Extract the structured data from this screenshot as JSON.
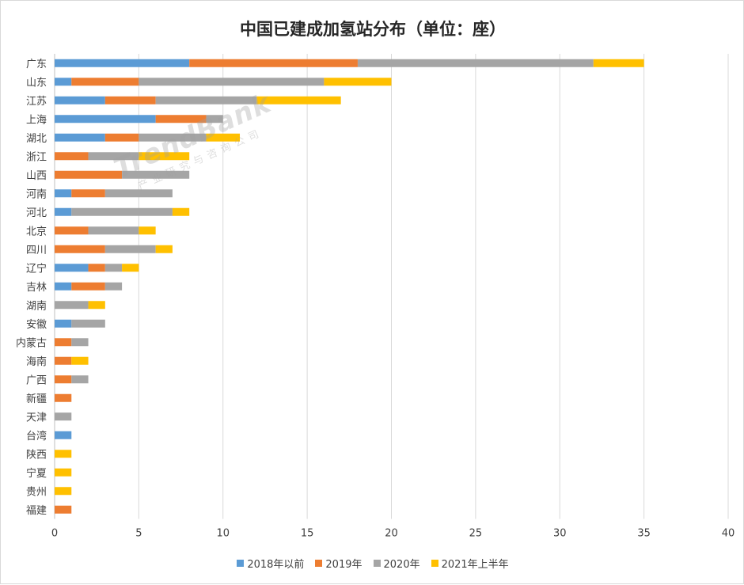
{
  "chart_data": {
    "type": "bar",
    "orientation": "horizontal",
    "stacked": true,
    "title": "中国已建成加氢站分布（单位：座）",
    "categories": [
      "广东",
      "山东",
      "江苏",
      "上海",
      "湖北",
      "浙江",
      "山西",
      "河南",
      "河北",
      "北京",
      "四川",
      "辽宁",
      "吉林",
      "湖南",
      "安徽",
      "内蒙古",
      "海南",
      "广西",
      "新疆",
      "天津",
      "台湾",
      "陕西",
      "宁夏",
      "贵州",
      "福建"
    ],
    "series": [
      {
        "name": "2018年以前",
        "color": "#5b9bd5",
        "values": [
          8,
          1,
          3,
          6,
          3,
          0,
          0,
          1,
          1,
          0,
          0,
          2,
          1,
          0,
          1,
          0,
          0,
          0,
          0,
          0,
          1,
          0,
          0,
          0,
          0
        ]
      },
      {
        "name": "2019年",
        "color": "#ed7d31",
        "values": [
          10,
          4,
          3,
          3,
          2,
          2,
          4,
          2,
          0,
          2,
          3,
          1,
          2,
          0,
          0,
          1,
          1,
          1,
          1,
          0,
          0,
          0,
          0,
          0,
          1
        ]
      },
      {
        "name": "2020年",
        "color": "#a5a5a5",
        "values": [
          14,
          11,
          6,
          1,
          4,
          3,
          4,
          4,
          6,
          3,
          3,
          1,
          1,
          2,
          2,
          1,
          0,
          1,
          0,
          1,
          0,
          0,
          0,
          0,
          0
        ]
      },
      {
        "name": "2021年上半年",
        "color": "#ffc000",
        "values": [
          3,
          4,
          5,
          0,
          2,
          3,
          0,
          0,
          1,
          1,
          1,
          1,
          0,
          1,
          0,
          0,
          1,
          0,
          0,
          0,
          0,
          1,
          1,
          1,
          0
        ]
      }
    ],
    "xlim": [
      0,
      40
    ],
    "xticks": [
      0,
      5,
      10,
      15,
      20,
      25,
      30,
      35,
      40
    ],
    "grid": "vertical",
    "legend": "bottom"
  },
  "watermark": {
    "main": "TrendBank",
    "sub": "产业研究与咨询公司"
  }
}
